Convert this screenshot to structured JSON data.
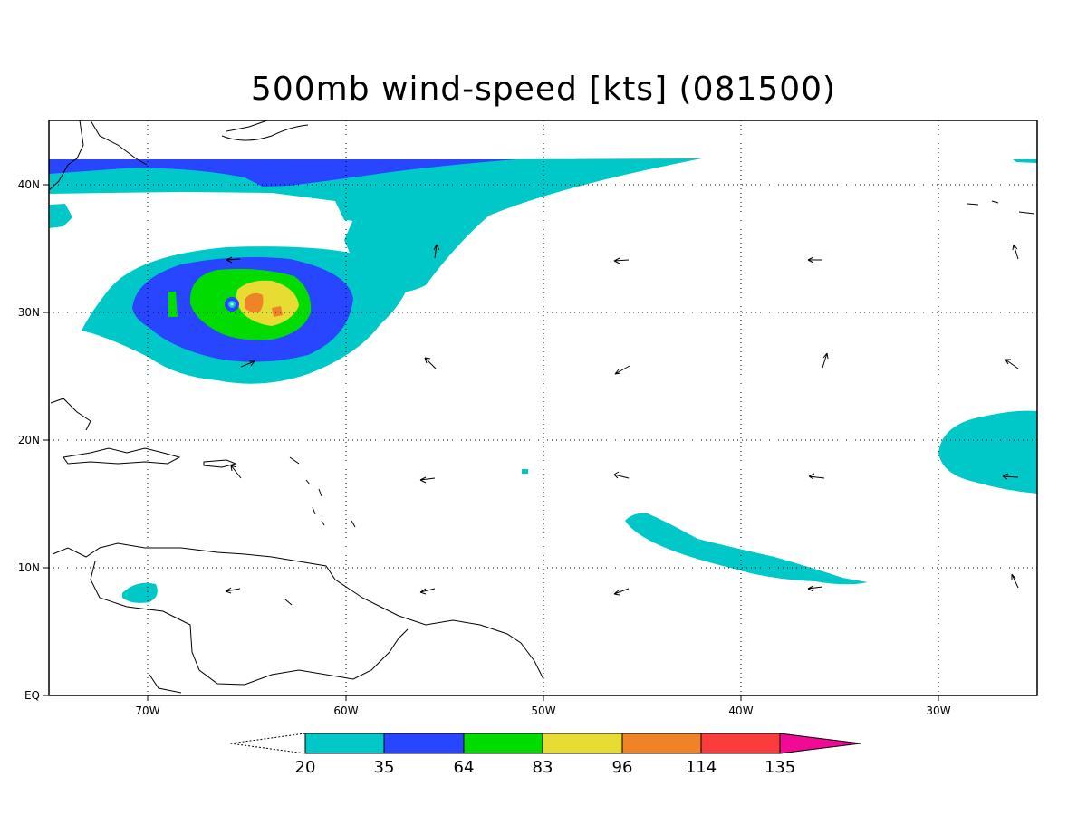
{
  "title": "500mb wind-speed [kts] (081500)",
  "axes": {
    "lon_ticks": [
      "70W",
      "60W",
      "50W",
      "40W",
      "30W"
    ],
    "lat_ticks": [
      "EQ",
      "10N",
      "20N",
      "30N",
      "40N"
    ]
  },
  "colorbar": {
    "levels": [
      "20",
      "35",
      "64",
      "83",
      "96",
      "114",
      "135"
    ],
    "colors": [
      "#00c8c8",
      "#2846ff",
      "#00dc00",
      "#e6dc32",
      "#f08228",
      "#fa3c3c",
      "#f00a96"
    ]
  },
  "contour_colors": {
    "band_20_35": "#00c8c8",
    "band_35_64": "#2846ff",
    "band_64_83": "#00dc00",
    "band_83_96": "#e6dc32",
    "band_96_114": "#f08228"
  }
}
